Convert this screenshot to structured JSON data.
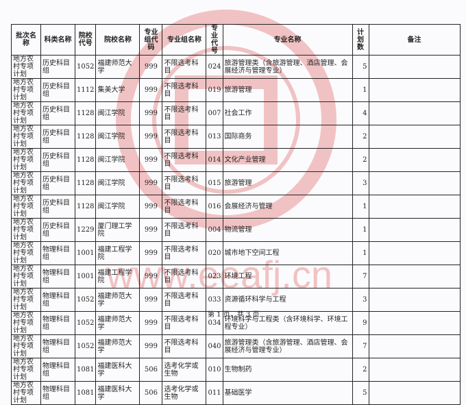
{
  "headers": [
    "批次名称",
    "科类名称",
    "院校代号",
    "院校名称",
    "专业组代码",
    "专业组名称",
    "专业代号",
    "专业名称",
    "计划数",
    "备注"
  ],
  "rows": [
    [
      "地方农村专项计划",
      "历史科目组",
      "1052",
      "福建师范大学",
      "999",
      "不限选考科目",
      "024",
      "旅游管理类（含旅游管理、酒店管理、会展经济与管理专业）",
      "5",
      ""
    ],
    [
      "地方农村专项计划",
      "历史科目组",
      "1112",
      "集美大学",
      "999",
      "不限选考科目",
      "019",
      "旅游管理",
      "1",
      ""
    ],
    [
      "地方农村专项计划",
      "历史科目组",
      "1128",
      "闽江学院",
      "999",
      "不限选考科目",
      "007",
      "社会工作",
      "4",
      ""
    ],
    [
      "地方农村专项计划",
      "历史科目组",
      "1128",
      "闽江学院",
      "999",
      "不限选考科目",
      "013",
      "国际商务",
      "2",
      ""
    ],
    [
      "地方农村专项计划",
      "历史科目组",
      "1128",
      "闽江学院",
      "999",
      "不限选考科目",
      "014",
      "文化产业管理",
      "2",
      ""
    ],
    [
      "地方农村专项计划",
      "历史科目组",
      "1128",
      "闽江学院",
      "999",
      "不限选考科目",
      "015",
      "旅游管理",
      "3",
      ""
    ],
    [
      "地方农村专项计划",
      "历史科目组",
      "1128",
      "闽江学院",
      "999",
      "不限选考科目",
      "016",
      "会展经济与管理",
      "1",
      ""
    ],
    [
      "地方农村专项计划",
      "历史科目组",
      "1229",
      "厦门理工学院",
      "999",
      "不限选考科目",
      "004",
      "物流管理",
      "1",
      ""
    ],
    [
      "地方农村专项计划",
      "物理科目组",
      "1001",
      "福建工程学院",
      "999",
      "不限选考科目",
      "020",
      "城市地下空间工程",
      "1",
      ""
    ],
    [
      "地方农村专项计划",
      "物理科目组",
      "1001",
      "福建工程学院",
      "999",
      "不限选考科目",
      "023",
      "环境工程",
      "7",
      ""
    ],
    [
      "地方农村专项计划",
      "物理科目组",
      "1052",
      "福建师范大学",
      "999",
      "不限选考科目",
      "033",
      "资源循环科学与工程",
      "3",
      ""
    ],
    [
      "地方农村专项计划",
      "物理科目组",
      "1052",
      "福建师范大学",
      "999",
      "不限选考科目",
      "034",
      "环境科学与工程类（含环境科学、环境工程专业）",
      "9",
      ""
    ],
    [
      "地方农村专项计划",
      "物理科目组",
      "1052",
      "福建师范大学",
      "999",
      "不限选考科目",
      "040",
      "旅游管理类（含旅游管理、酒店管理、会展经济与管理专业）",
      "7",
      ""
    ],
    [
      "地方农村专项计划",
      "物理科目组",
      "1081",
      "福建医科大学",
      "506",
      "选考化学或生物",
      "010",
      "生物制药",
      "2",
      ""
    ],
    [
      "地方农村专项计划",
      "物理科目组",
      "1081",
      "福建医科大学",
      "506",
      "选考化学或生物",
      "011",
      "基础医学",
      "5",
      ""
    ]
  ],
  "footer": "第 1 页，共 3 页",
  "watermark": {
    "url_text": "www.eeafj.cn",
    "color": "#e05a5a"
  }
}
